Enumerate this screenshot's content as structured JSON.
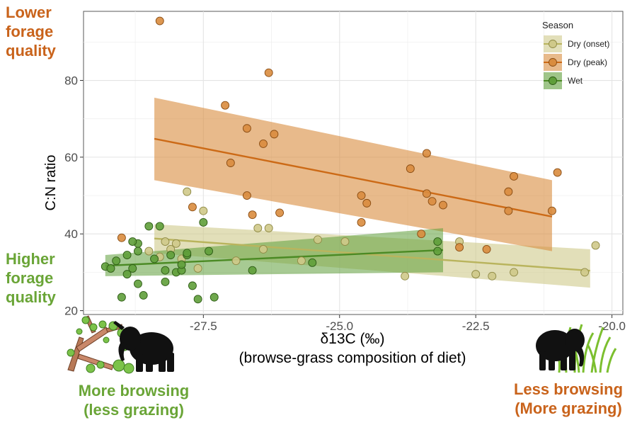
{
  "side_labels": {
    "top_left": [
      "Lower",
      "forage",
      "quality"
    ],
    "mid_left": [
      "Higher",
      "forage",
      "quality"
    ],
    "bottom_left": [
      "More browsing",
      "(less grazing)"
    ],
    "bottom_right": [
      "Less browsing",
      "(More grazing)"
    ]
  },
  "colors": {
    "dry_onset": "#cfc98a",
    "dry_peak": "#d98c3e",
    "wet": "#5f9e3a",
    "orange_text": "#c9631b",
    "green_text": "#6aa537"
  },
  "chart_data": {
    "type": "scatter",
    "title": "",
    "xlabel": "δ13C (‰)",
    "xlabel2": "(browse-grass composition of diet)",
    "ylabel": "C:N ratio",
    "xlim": [
      -29.7,
      -19.8
    ],
    "ylim": [
      19,
      98
    ],
    "x_ticks": [
      -27.5,
      -25.0,
      -22.5,
      -20.0
    ],
    "x_tick_labels": [
      "-27.5",
      "-25.0",
      "-22.5",
      "-20.0"
    ],
    "y_ticks": [
      20,
      40,
      60,
      80
    ],
    "y_tick_labels": [
      "20",
      "40",
      "60",
      "80"
    ],
    "grid": true,
    "legend": {
      "title": "Season",
      "position": "top-right"
    },
    "series": [
      {
        "name": "Dry (onset)",
        "color": "#cfc98a",
        "stroke": "#8f8a45",
        "line_color": "#b9b45d",
        "fit": {
          "x": [
            -28.4,
            -20.4
          ],
          "y": [
            38.8,
            30.4
          ]
        },
        "band_upper": [
          42.5,
          36
        ],
        "band_lower": [
          35,
          26
        ],
        "points": [
          [
            -28.5,
            35.5
          ],
          [
            -28.3,
            34
          ],
          [
            -28.1,
            36
          ],
          [
            -27.9,
            33.5
          ],
          [
            -27.8,
            51
          ],
          [
            -27.6,
            31
          ],
          [
            -27.5,
            46
          ],
          [
            -26.9,
            33
          ],
          [
            -26.5,
            41.5
          ],
          [
            -26.4,
            36
          ],
          [
            -26.3,
            41.5
          ],
          [
            -25.7,
            33
          ],
          [
            -25.4,
            38.5
          ],
          [
            -24.9,
            38
          ],
          [
            -23.8,
            29
          ],
          [
            -22.8,
            38
          ],
          [
            -22.5,
            29.5
          ],
          [
            -22.2,
            29
          ],
          [
            -21.8,
            30
          ],
          [
            -20.5,
            30
          ],
          [
            -20.3,
            37
          ],
          [
            -28.2,
            38
          ],
          [
            -28.0,
            37.5
          ]
        ]
      },
      {
        "name": "Dry (peak)",
        "color": "#d98c3e",
        "stroke": "#8a4d14",
        "line_color": "#cc6a16",
        "fit": {
          "x": [
            -28.4,
            -21.1
          ],
          "y": [
            64.8,
            44.5
          ]
        },
        "band_upper": [
          75.5,
          54
        ],
        "band_lower": [
          54,
          35.5
        ],
        "points": [
          [
            -29.0,
            39
          ],
          [
            -28.3,
            95.5
          ],
          [
            -27.7,
            47
          ],
          [
            -27.1,
            73.5
          ],
          [
            -27.0,
            58.5
          ],
          [
            -26.7,
            50
          ],
          [
            -26.7,
            67.5
          ],
          [
            -26.6,
            45
          ],
          [
            -26.4,
            63.5
          ],
          [
            -26.3,
            82
          ],
          [
            -26.2,
            66
          ],
          [
            -26.1,
            45.5
          ],
          [
            -24.6,
            50
          ],
          [
            -24.6,
            43
          ],
          [
            -24.5,
            48
          ],
          [
            -23.5,
            40
          ],
          [
            -23.4,
            61
          ],
          [
            -23.4,
            50.5
          ],
          [
            -23.3,
            48.5
          ],
          [
            -23.1,
            47.5
          ],
          [
            -22.8,
            36.5
          ],
          [
            -22.3,
            36
          ],
          [
            -21.9,
            46
          ],
          [
            -21.8,
            55
          ],
          [
            -21.1,
            46
          ],
          [
            -21.0,
            56
          ],
          [
            -23.7,
            57
          ],
          [
            -21.9,
            51
          ]
        ]
      },
      {
        "name": "Wet",
        "color": "#5f9e3a",
        "stroke": "#2e5c16",
        "line_color": "#4b8a24",
        "fit": {
          "x": [
            -29.3,
            -23.1
          ],
          "y": [
            31.7,
            35.8
          ]
        },
        "band_upper": [
          34.5,
          41.5
        ],
        "band_lower": [
          29,
          30
        ],
        "points": [
          [
            -29.3,
            31.5
          ],
          [
            -29.2,
            31
          ],
          [
            -29.1,
            33
          ],
          [
            -29.0,
            23.5
          ],
          [
            -28.9,
            34.5
          ],
          [
            -28.9,
            29.5
          ],
          [
            -28.8,
            31
          ],
          [
            -28.7,
            37.5
          ],
          [
            -28.7,
            27
          ],
          [
            -28.7,
            35.5
          ],
          [
            -28.6,
            24
          ],
          [
            -28.5,
            42
          ],
          [
            -28.4,
            33.5
          ],
          [
            -28.3,
            42
          ],
          [
            -28.2,
            30.5
          ],
          [
            -28.2,
            27.5
          ],
          [
            -28.1,
            34.5
          ],
          [
            -28.0,
            30
          ],
          [
            -27.9,
            30.5
          ],
          [
            -27.9,
            32
          ],
          [
            -27.8,
            34.5
          ],
          [
            -27.8,
            35
          ],
          [
            -27.6,
            23
          ],
          [
            -27.5,
            43
          ],
          [
            -27.4,
            35.5
          ],
          [
            -27.3,
            23.5
          ],
          [
            -26.6,
            30.5
          ],
          [
            -25.5,
            32.5
          ],
          [
            -23.2,
            38
          ],
          [
            -23.2,
            35.5
          ],
          [
            -28.8,
            38
          ],
          [
            -27.7,
            26.5
          ]
        ]
      }
    ]
  }
}
